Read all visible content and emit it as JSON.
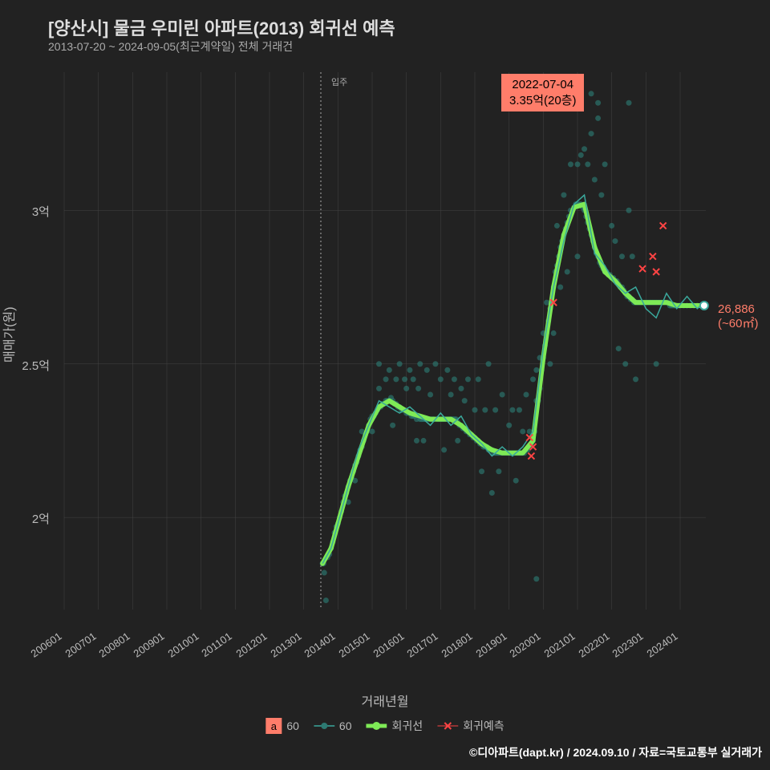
{
  "title": "[양산시] 물금 우미린 아파트(2013) 회귀선 예측",
  "subtitle": "2013-07-20 ~ 2024-09-05(최근계약일) 전체 거래건",
  "x_axis_label": "거래년월",
  "y_axis_label": "매매가(원)",
  "callout": {
    "line1": "2022-07-04",
    "line2": "3.35억(20층)"
  },
  "end_label": {
    "value": "26,886",
    "sub": "(~60㎡)"
  },
  "vline_label": "입주",
  "legend": {
    "a_label": "a",
    "item1": "60",
    "item2": "60",
    "item3": "회귀선",
    "item4": "회귀예측"
  },
  "credit": "©디아파트(dapt.kr) / 2024.09.10 / 자료=국토교통부 실거래가",
  "chart": {
    "type": "scatter+line",
    "background_color": "#222222",
    "grid_color": "#444444",
    "x_range": [
      "2006-01",
      "2024-09"
    ],
    "y_range": [
      1.7,
      3.45
    ],
    "y_ticks": [
      2.0,
      2.5,
      3.0
    ],
    "y_tick_labels": [
      "2억",
      "2.5억",
      "3억"
    ],
    "x_ticks": [
      "200601",
      "200701",
      "200801",
      "200901",
      "201001",
      "201101",
      "201201",
      "201301",
      "201401",
      "201501",
      "201601",
      "201701",
      "201801",
      "201901",
      "202001",
      "202101",
      "202201",
      "202301",
      "202401"
    ],
    "vline_x": "2013-07",
    "scatter_color": "#2d7a72",
    "scatter_opacity": 0.65,
    "scatter_radius": 3.5,
    "thin_line_color": "#3aa89c",
    "thin_line_width": 1.5,
    "regression_line_color": "#7eea56",
    "regression_line_width": 6,
    "prediction_marker_color": "#ff4444",
    "end_point_color": "#ffffff",
    "end_point_stroke": "#3aa89c",
    "scatter_points": [
      [
        2013.55,
        1.85
      ],
      [
        2013.6,
        1.82
      ],
      [
        2013.58,
        1.85
      ],
      [
        2013.65,
        1.73
      ],
      [
        2013.7,
        1.87
      ],
      [
        2013.75,
        1.88
      ],
      [
        2013.8,
        1.9
      ],
      [
        2013.85,
        1.92
      ],
      [
        2013.9,
        1.95
      ],
      [
        2013.95,
        1.97
      ],
      [
        2014.0,
        1.98
      ],
      [
        2014.05,
        2.0
      ],
      [
        2014.1,
        2.02
      ],
      [
        2014.15,
        2.05
      ],
      [
        2014.2,
        2.07
      ],
      [
        2014.25,
        2.08
      ],
      [
        2014.3,
        2.1
      ],
      [
        2014.3,
        2.05
      ],
      [
        2014.35,
        2.12
      ],
      [
        2014.4,
        2.13
      ],
      [
        2014.45,
        2.15
      ],
      [
        2014.5,
        2.17
      ],
      [
        2014.5,
        2.12
      ],
      [
        2014.55,
        2.18
      ],
      [
        2014.6,
        2.2
      ],
      [
        2014.65,
        2.22
      ],
      [
        2014.7,
        2.23
      ],
      [
        2014.7,
        2.28
      ],
      [
        2014.75,
        2.25
      ],
      [
        2014.8,
        2.27
      ],
      [
        2014.85,
        2.28
      ],
      [
        2014.9,
        2.3
      ],
      [
        2014.95,
        2.32
      ],
      [
        2015.0,
        2.33
      ],
      [
        2015.0,
        2.28
      ],
      [
        2015.05,
        2.33
      ],
      [
        2015.1,
        2.34
      ],
      [
        2015.15,
        2.35
      ],
      [
        2015.2,
        2.36
      ],
      [
        2015.2,
        2.42
      ],
      [
        2015.2,
        2.5
      ],
      [
        2015.25,
        2.36
      ],
      [
        2015.3,
        2.37
      ],
      [
        2015.35,
        2.37
      ],
      [
        2015.4,
        2.38
      ],
      [
        2015.4,
        2.45
      ],
      [
        2015.45,
        2.38
      ],
      [
        2015.5,
        2.38
      ],
      [
        2015.5,
        2.48
      ],
      [
        2015.55,
        2.39
      ],
      [
        2015.6,
        2.38
      ],
      [
        2015.6,
        2.3
      ],
      [
        2015.65,
        2.37
      ],
      [
        2015.7,
        2.37
      ],
      [
        2015.7,
        2.45
      ],
      [
        2015.75,
        2.36
      ],
      [
        2015.8,
        2.36
      ],
      [
        2015.8,
        2.5
      ],
      [
        2015.85,
        2.35
      ],
      [
        2015.9,
        2.35
      ],
      [
        2015.95,
        2.45
      ],
      [
        2016.0,
        2.34
      ],
      [
        2016.0,
        2.42
      ],
      [
        2016.05,
        2.34
      ],
      [
        2016.1,
        2.34
      ],
      [
        2016.1,
        2.48
      ],
      [
        2016.15,
        2.33
      ],
      [
        2016.2,
        2.33
      ],
      [
        2016.2,
        2.45
      ],
      [
        2016.25,
        2.33
      ],
      [
        2016.3,
        2.32
      ],
      [
        2016.3,
        2.25
      ],
      [
        2016.35,
        2.42
      ],
      [
        2016.4,
        2.32
      ],
      [
        2016.4,
        2.5
      ],
      [
        2016.45,
        2.32
      ],
      [
        2016.5,
        2.32
      ],
      [
        2016.5,
        2.25
      ],
      [
        2016.55,
        2.32
      ],
      [
        2016.6,
        2.32
      ],
      [
        2016.6,
        2.48
      ],
      [
        2016.65,
        2.32
      ],
      [
        2016.7,
        2.32
      ],
      [
        2016.7,
        2.4
      ],
      [
        2016.75,
        2.32
      ],
      [
        2016.8,
        2.32
      ],
      [
        2016.85,
        2.5
      ],
      [
        2016.9,
        2.32
      ],
      [
        2016.95,
        2.32
      ],
      [
        2017.0,
        2.32
      ],
      [
        2017.0,
        2.45
      ],
      [
        2017.05,
        2.32
      ],
      [
        2017.1,
        2.32
      ],
      [
        2017.1,
        2.22
      ],
      [
        2017.15,
        2.32
      ],
      [
        2017.2,
        2.32
      ],
      [
        2017.2,
        2.48
      ],
      [
        2017.25,
        2.32
      ],
      [
        2017.3,
        2.32
      ],
      [
        2017.3,
        2.4
      ],
      [
        2017.35,
        2.32
      ],
      [
        2017.4,
        2.32
      ],
      [
        2017.4,
        2.45
      ],
      [
        2017.45,
        2.32
      ],
      [
        2017.5,
        2.31
      ],
      [
        2017.5,
        2.25
      ],
      [
        2017.55,
        2.3
      ],
      [
        2017.6,
        2.3
      ],
      [
        2017.6,
        2.42
      ],
      [
        2017.65,
        2.29
      ],
      [
        2017.7,
        2.29
      ],
      [
        2017.7,
        2.38
      ],
      [
        2017.75,
        2.28
      ],
      [
        2017.8,
        2.28
      ],
      [
        2017.8,
        2.45
      ],
      [
        2017.85,
        2.27
      ],
      [
        2017.9,
        2.27
      ],
      [
        2017.95,
        2.26
      ],
      [
        2018.0,
        2.26
      ],
      [
        2018.0,
        2.35
      ],
      [
        2018.1,
        2.45
      ],
      [
        2018.05,
        2.25
      ],
      [
        2018.1,
        2.25
      ],
      [
        2018.15,
        2.24
      ],
      [
        2018.2,
        2.24
      ],
      [
        2018.2,
        2.15
      ],
      [
        2018.25,
        2.23
      ],
      [
        2018.3,
        2.23
      ],
      [
        2018.3,
        2.35
      ],
      [
        2018.35,
        2.23
      ],
      [
        2018.4,
        2.22
      ],
      [
        2018.4,
        2.5
      ],
      [
        2018.45,
        2.22
      ],
      [
        2018.5,
        2.22
      ],
      [
        2018.5,
        2.08
      ],
      [
        2018.55,
        2.21
      ],
      [
        2018.6,
        2.21
      ],
      [
        2018.6,
        2.35
      ],
      [
        2018.65,
        2.21
      ],
      [
        2018.7,
        2.21
      ],
      [
        2018.7,
        2.15
      ],
      [
        2018.75,
        2.21
      ],
      [
        2018.8,
        2.21
      ],
      [
        2018.8,
        2.4
      ],
      [
        2018.85,
        2.21
      ],
      [
        2018.9,
        2.21
      ],
      [
        2018.95,
        2.21
      ],
      [
        2019.0,
        2.21
      ],
      [
        2019.0,
        2.3
      ],
      [
        2019.05,
        2.21
      ],
      [
        2019.1,
        2.21
      ],
      [
        2019.1,
        2.35
      ],
      [
        2019.15,
        2.21
      ],
      [
        2019.2,
        2.21
      ],
      [
        2019.2,
        2.12
      ],
      [
        2019.25,
        2.21
      ],
      [
        2019.3,
        2.21
      ],
      [
        2019.3,
        2.35
      ],
      [
        2019.35,
        2.21
      ],
      [
        2019.4,
        2.21
      ],
      [
        2019.4,
        2.28
      ],
      [
        2019.45,
        2.21
      ],
      [
        2019.5,
        2.22
      ],
      [
        2019.5,
        2.4
      ],
      [
        2019.55,
        2.22
      ],
      [
        2019.6,
        2.23
      ],
      [
        2019.6,
        2.28
      ],
      [
        2019.65,
        2.24
      ],
      [
        2019.7,
        2.25
      ],
      [
        2019.7,
        2.45
      ],
      [
        2019.75,
        2.28
      ],
      [
        2019.8,
        2.38
      ],
      [
        2019.8,
        2.48
      ],
      [
        2019.8,
        1.8
      ],
      [
        2019.85,
        2.38
      ],
      [
        2019.9,
        2.42
      ],
      [
        2019.9,
        2.52
      ],
      [
        2019.95,
        2.48
      ],
      [
        2020.0,
        2.52
      ],
      [
        2020.0,
        2.6
      ],
      [
        2020.05,
        2.56
      ],
      [
        2020.1,
        2.6
      ],
      [
        2020.1,
        2.7
      ],
      [
        2020.15,
        2.64
      ],
      [
        2020.2,
        2.68
      ],
      [
        2020.2,
        2.5
      ],
      [
        2020.25,
        2.7
      ],
      [
        2020.3,
        2.75
      ],
      [
        2020.3,
        2.6
      ],
      [
        2020.35,
        2.8
      ],
      [
        2020.4,
        2.82
      ],
      [
        2020.4,
        2.95
      ],
      [
        2020.45,
        2.85
      ],
      [
        2020.5,
        2.88
      ],
      [
        2020.5,
        2.75
      ],
      [
        2020.55,
        2.9
      ],
      [
        2020.6,
        2.92
      ],
      [
        2020.6,
        3.05
      ],
      [
        2020.65,
        2.94
      ],
      [
        2020.7,
        2.96
      ],
      [
        2020.7,
        2.8
      ],
      [
        2020.75,
        2.98
      ],
      [
        2020.8,
        3.0
      ],
      [
        2020.8,
        3.15
      ],
      [
        2020.85,
        3.0
      ],
      [
        2020.9,
        3.01
      ],
      [
        2020.95,
        3.02
      ],
      [
        2021.0,
        3.02
      ],
      [
        2021.0,
        3.15
      ],
      [
        2021.0,
        2.85
      ],
      [
        2021.05,
        3.02
      ],
      [
        2021.1,
        3.02
      ],
      [
        2021.1,
        3.18
      ],
      [
        2021.15,
        3.01
      ],
      [
        2021.2,
        3.0
      ],
      [
        2021.2,
        3.2
      ],
      [
        2021.25,
        2.98
      ],
      [
        2021.3,
        2.96
      ],
      [
        2021.3,
        3.15
      ],
      [
        2021.35,
        2.94
      ],
      [
        2021.4,
        2.92
      ],
      [
        2021.4,
        3.25
      ],
      [
        2021.4,
        3.38
      ],
      [
        2021.45,
        2.9
      ],
      [
        2021.5,
        2.88
      ],
      [
        2021.5,
        3.1
      ],
      [
        2021.55,
        2.86
      ],
      [
        2021.6,
        2.85
      ],
      [
        2021.6,
        3.3
      ],
      [
        2021.6,
        3.35
      ],
      [
        2021.65,
        2.83
      ],
      [
        2021.7,
        2.82
      ],
      [
        2021.7,
        3.05
      ],
      [
        2021.75,
        2.81
      ],
      [
        2021.8,
        2.8
      ],
      [
        2021.8,
        3.15
      ],
      [
        2021.85,
        2.8
      ],
      [
        2021.9,
        2.79
      ],
      [
        2021.95,
        2.79
      ],
      [
        2022.0,
        2.78
      ],
      [
        2022.0,
        2.95
      ],
      [
        2022.05,
        2.78
      ],
      [
        2022.1,
        2.77
      ],
      [
        2022.1,
        2.9
      ],
      [
        2022.15,
        2.77
      ],
      [
        2022.2,
        2.76
      ],
      [
        2022.2,
        2.55
      ],
      [
        2022.25,
        2.75
      ],
      [
        2022.3,
        2.75
      ],
      [
        2022.3,
        2.85
      ],
      [
        2022.35,
        2.74
      ],
      [
        2022.4,
        2.73
      ],
      [
        2022.4,
        2.5
      ],
      [
        2022.45,
        2.72
      ],
      [
        2022.5,
        2.72
      ],
      [
        2022.5,
        3.0
      ],
      [
        2022.5,
        3.35
      ],
      [
        2022.55,
        2.71
      ],
      [
        2022.6,
        2.71
      ],
      [
        2022.6,
        2.85
      ],
      [
        2022.65,
        2.7
      ],
      [
        2022.7,
        2.7
      ],
      [
        2022.7,
        2.45
      ],
      [
        2022.75,
        2.7
      ],
      [
        2022.8,
        2.7
      ],
      [
        2022.85,
        2.7
      ],
      [
        2022.9,
        2.7
      ],
      [
        2022.95,
        2.7
      ],
      [
        2023.0,
        2.7
      ],
      [
        2023.05,
        2.7
      ],
      [
        2023.1,
        2.7
      ],
      [
        2023.15,
        2.7
      ],
      [
        2023.2,
        2.7
      ],
      [
        2023.25,
        2.7
      ],
      [
        2023.3,
        2.7
      ],
      [
        2023.3,
        2.5
      ],
      [
        2023.35,
        2.7
      ],
      [
        2023.4,
        2.7
      ],
      [
        2023.45,
        2.7
      ],
      [
        2023.5,
        2.7
      ],
      [
        2023.55,
        2.7
      ],
      [
        2023.6,
        2.7
      ],
      [
        2023.65,
        2.7
      ],
      [
        2023.7,
        2.69
      ],
      [
        2023.75,
        2.69
      ],
      [
        2023.8,
        2.69
      ],
      [
        2023.85,
        2.69
      ],
      [
        2023.9,
        2.69
      ],
      [
        2023.95,
        2.69
      ],
      [
        2024.0,
        2.69
      ],
      [
        2024.1,
        2.69
      ],
      [
        2024.2,
        2.69
      ],
      [
        2024.3,
        2.69
      ],
      [
        2024.4,
        2.69
      ],
      [
        2024.5,
        2.69
      ],
      [
        2024.6,
        2.69
      ],
      [
        2024.7,
        2.69
      ]
    ],
    "thin_line": [
      [
        2013.55,
        1.85
      ],
      [
        2013.8,
        1.9
      ],
      [
        2014.0,
        1.98
      ],
      [
        2014.3,
        2.1
      ],
      [
        2014.6,
        2.22
      ],
      [
        2014.9,
        2.3
      ],
      [
        2015.2,
        2.38
      ],
      [
        2015.5,
        2.36
      ],
      [
        2015.8,
        2.34
      ],
      [
        2016.1,
        2.36
      ],
      [
        2016.4,
        2.33
      ],
      [
        2016.7,
        2.3
      ],
      [
        2017.0,
        2.34
      ],
      [
        2017.3,
        2.3
      ],
      [
        2017.6,
        2.33
      ],
      [
        2017.9,
        2.27
      ],
      [
        2018.2,
        2.24
      ],
      [
        2018.5,
        2.2
      ],
      [
        2018.8,
        2.23
      ],
      [
        2019.1,
        2.2
      ],
      [
        2019.4,
        2.23
      ],
      [
        2019.7,
        2.28
      ],
      [
        2020.0,
        2.55
      ],
      [
        2020.3,
        2.75
      ],
      [
        2020.6,
        2.9
      ],
      [
        2020.9,
        3.02
      ],
      [
        2021.2,
        3.05
      ],
      [
        2021.5,
        2.86
      ],
      [
        2021.8,
        2.82
      ],
      [
        2022.1,
        2.76
      ],
      [
        2022.4,
        2.73
      ],
      [
        2022.7,
        2.75
      ],
      [
        2023.0,
        2.68
      ],
      [
        2023.3,
        2.65
      ],
      [
        2023.6,
        2.73
      ],
      [
        2023.9,
        2.68
      ],
      [
        2024.2,
        2.72
      ],
      [
        2024.5,
        2.68
      ],
      [
        2024.7,
        2.7
      ]
    ],
    "regression_line": [
      [
        2013.55,
        1.85
      ],
      [
        2013.8,
        1.9
      ],
      [
        2014.0,
        1.98
      ],
      [
        2014.3,
        2.1
      ],
      [
        2014.6,
        2.2
      ],
      [
        2014.9,
        2.3
      ],
      [
        2015.2,
        2.36
      ],
      [
        2015.5,
        2.38
      ],
      [
        2015.8,
        2.36
      ],
      [
        2016.1,
        2.34
      ],
      [
        2016.4,
        2.33
      ],
      [
        2016.7,
        2.32
      ],
      [
        2017.0,
        2.32
      ],
      [
        2017.3,
        2.32
      ],
      [
        2017.6,
        2.3
      ],
      [
        2017.9,
        2.27
      ],
      [
        2018.2,
        2.24
      ],
      [
        2018.5,
        2.22
      ],
      [
        2018.8,
        2.21
      ],
      [
        2019.1,
        2.21
      ],
      [
        2019.4,
        2.21
      ],
      [
        2019.7,
        2.25
      ],
      [
        2020.0,
        2.52
      ],
      [
        2020.3,
        2.75
      ],
      [
        2020.6,
        2.92
      ],
      [
        2020.9,
        3.01
      ],
      [
        2021.2,
        3.02
      ],
      [
        2021.5,
        2.88
      ],
      [
        2021.8,
        2.8
      ],
      [
        2022.1,
        2.77
      ],
      [
        2022.4,
        2.73
      ],
      [
        2022.7,
        2.7
      ],
      [
        2023.0,
        2.7
      ],
      [
        2023.3,
        2.7
      ],
      [
        2023.6,
        2.7
      ],
      [
        2023.9,
        2.69
      ],
      [
        2024.2,
        2.69
      ],
      [
        2024.5,
        2.69
      ],
      [
        2024.7,
        2.69
      ]
    ],
    "prediction_points": [
      [
        2019.6,
        2.26
      ],
      [
        2019.65,
        2.2
      ],
      [
        2019.7,
        2.23
      ],
      [
        2020.3,
        2.7
      ],
      [
        2022.9,
        2.81
      ],
      [
        2023.2,
        2.85
      ],
      [
        2023.3,
        2.8
      ],
      [
        2023.5,
        2.95
      ]
    ],
    "end_point": [
      2024.7,
      2.69
    ]
  }
}
